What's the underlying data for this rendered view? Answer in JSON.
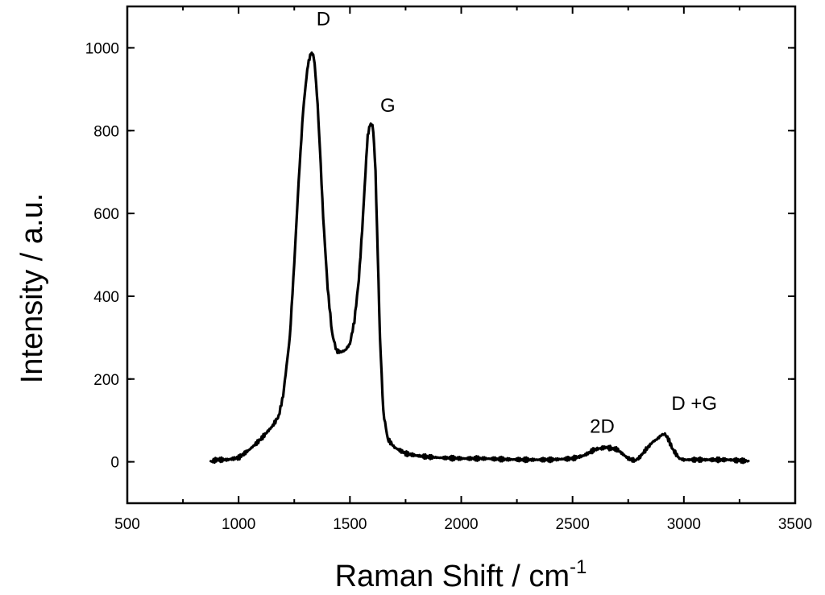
{
  "chart_data": {
    "type": "line",
    "title": "",
    "xlabel": "Raman Shift / cm",
    "xlabel_superscript": "-1",
    "ylabel": "Intensity / a.u.",
    "xlim": [
      500,
      3500
    ],
    "ylim": [
      -100,
      1100
    ],
    "x_ticks": [
      500,
      1000,
      1500,
      2000,
      2500,
      3000,
      3500
    ],
    "y_ticks": [
      0,
      200,
      400,
      600,
      800,
      1000
    ],
    "grid": false,
    "legend": "none",
    "series": [
      {
        "color": "#000000",
        "x": [
          875,
          900,
          950,
          1000,
          1050,
          1100,
          1150,
          1180,
          1200,
          1230,
          1250,
          1270,
          1290,
          1305,
          1315,
          1325,
          1332,
          1338,
          1345,
          1355,
          1365,
          1380,
          1400,
          1420,
          1440,
          1460,
          1480,
          1500,
          1520,
          1540,
          1555,
          1570,
          1580,
          1590,
          1597,
          1605,
          1615,
          1625,
          1635,
          1650,
          1670,
          1700,
          1750,
          1800,
          1850,
          1900,
          2000,
          2100,
          2200,
          2300,
          2400,
          2500,
          2550,
          2600,
          2630,
          2650,
          2680,
          2700,
          2750,
          2780,
          2800,
          2830,
          2860,
          2880,
          2900,
          2915,
          2930,
          2950,
          2980,
          3000,
          3050,
          3100,
          3150,
          3200,
          3250,
          3290
        ],
        "y": [
          0,
          5,
          5,
          10,
          30,
          55,
          85,
          110,
          160,
          300,
          480,
          680,
          850,
          930,
          970,
          985,
          988,
          975,
          940,
          860,
          760,
          590,
          420,
          310,
          268,
          265,
          270,
          285,
          340,
          440,
          560,
          700,
          790,
          812,
          818,
          800,
          700,
          500,
          300,
          120,
          55,
          35,
          20,
          15,
          12,
          10,
          8,
          8,
          6,
          5,
          5,
          8,
          15,
          30,
          33,
          35,
          32,
          30,
          8,
          3,
          10,
          30,
          48,
          55,
          65,
          67,
          55,
          30,
          8,
          5,
          5,
          5,
          5,
          5,
          3,
          2
        ]
      }
    ],
    "annotations": [
      {
        "text": "D",
        "x": 1335,
        "y": 988
      },
      {
        "text": "G",
        "x": 1600,
        "y": 818
      },
      {
        "text": "2D",
        "x": 2655,
        "y": 35
      },
      {
        "text": "D +G",
        "x": 2915,
        "y": 67
      }
    ]
  }
}
